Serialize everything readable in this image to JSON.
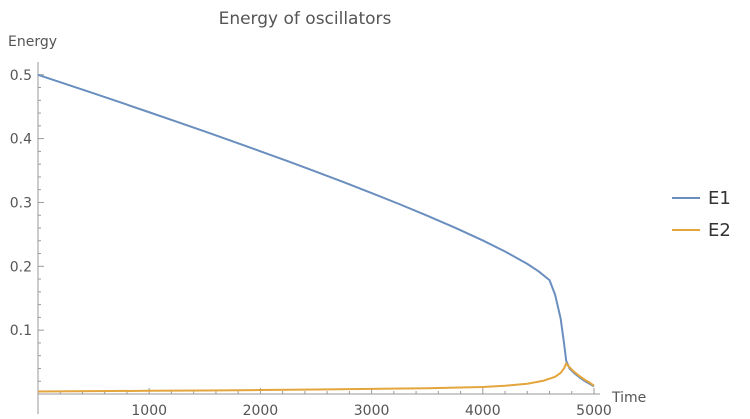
{
  "chart_data": {
    "type": "line",
    "title": "Energy of oscillators",
    "xlabel": "Time",
    "ylabel": "Energy",
    "xlim": [
      0,
      5000
    ],
    "ylim": [
      0,
      0.52
    ],
    "xticks": [
      1000,
      2000,
      3000,
      4000,
      5000
    ],
    "yticks": [
      0.1,
      0.2,
      0.3,
      0.4,
      0.5
    ],
    "grid": false,
    "legend_position": "right",
    "series": [
      {
        "name": "E1",
        "color": "#6a8fbf",
        "x": [
          0,
          250,
          500,
          750,
          1000,
          1250,
          1500,
          1750,
          2000,
          2250,
          2500,
          2750,
          3000,
          3250,
          3500,
          3750,
          4000,
          4200,
          4400,
          4500,
          4600,
          4650,
          4700,
          4730,
          4750,
          4780,
          4820,
          4870,
          4920,
          4960,
          5000
        ],
        "y": [
          0.5,
          0.4855,
          0.4709,
          0.4562,
          0.4413,
          0.4263,
          0.4112,
          0.3958,
          0.3802,
          0.3644,
          0.3482,
          0.3318,
          0.3148,
          0.2974,
          0.2793,
          0.2605,
          0.2405,
          0.2232,
          0.2038,
          0.1924,
          0.1784,
          0.1556,
          0.1183,
          0.08,
          0.052,
          0.04,
          0.033,
          0.026,
          0.02,
          0.016,
          0.012
        ]
      },
      {
        "name": "E2",
        "color": "#e3a53c",
        "x": [
          0,
          500,
          1000,
          1500,
          2000,
          2500,
          3000,
          3500,
          4000,
          4200,
          4400,
          4550,
          4650,
          4700,
          4730,
          4750,
          4780,
          4820,
          4870,
          4920,
          4960,
          5000
        ],
        "y": [
          0.004,
          0.0045,
          0.005,
          0.0055,
          0.0062,
          0.007,
          0.008,
          0.009,
          0.011,
          0.013,
          0.016,
          0.021,
          0.027,
          0.033,
          0.04,
          0.048,
          0.042,
          0.035,
          0.028,
          0.022,
          0.018,
          0.013
        ]
      }
    ]
  }
}
